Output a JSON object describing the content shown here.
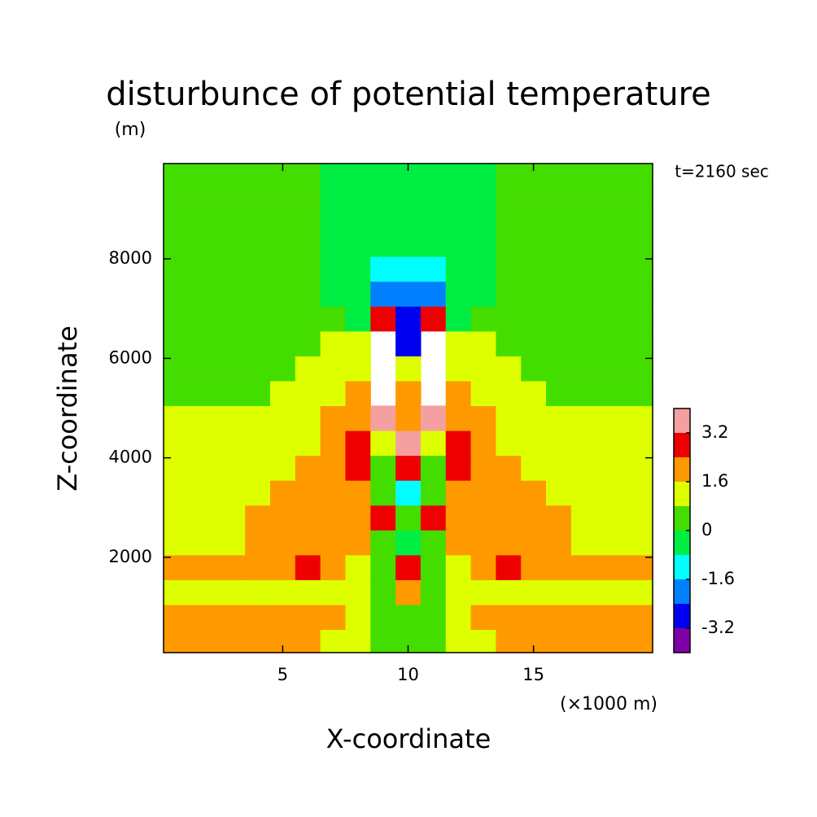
{
  "chart_data": {
    "type": "contour",
    "title": "disturbunce of potential temperature",
    "y_unit": "(m)",
    "x_unit": "(×1000 m)",
    "xlabel": "X-coordinate",
    "ylabel": "Z-coordinate",
    "annotation": "t=2160 sec",
    "xlim": [
      0.25,
      19.75
    ],
    "ylim": [
      83.3,
      9916.7
    ],
    "xticks": [
      5,
      10,
      15
    ],
    "yticks": [
      2000,
      4000,
      6000,
      8000
    ],
    "x": [
      1,
      2,
      3,
      4,
      5,
      6,
      7,
      8,
      9,
      10,
      11,
      12,
      13,
      14,
      15,
      16,
      17,
      18,
      19
    ],
    "y": [
      300,
      800,
      1300,
      1800,
      2300,
      2800,
      3300,
      3800,
      4300,
      4800,
      5300,
      5800,
      6300,
      6800,
      7300,
      7800,
      8300,
      8800,
      9300,
      9800
    ],
    "z": [
      [
        2,
        2,
        2,
        2,
        2,
        2,
        1.2,
        1.2,
        0.4,
        0.4,
        0.4,
        1.2,
        1.2,
        2,
        2,
        2,
        2,
        2,
        2
      ],
      [
        2,
        2,
        2,
        2,
        2,
        2,
        2,
        1.2,
        0.4,
        0.4,
        0.4,
        1.2,
        2,
        2,
        2,
        2,
        2,
        2,
        2
      ],
      [
        1.2,
        1.2,
        1.2,
        1.2,
        1.2,
        1.2,
        1.2,
        1.2,
        0.4,
        2,
        0.4,
        1.2,
        1.2,
        1.2,
        1.2,
        1.2,
        1.2,
        1.2,
        1.2
      ],
      [
        2,
        2,
        2,
        2,
        2,
        2.8,
        2,
        1.2,
        0.4,
        2.8,
        0.4,
        1.2,
        2,
        2.8,
        2,
        2,
        2,
        2,
        2
      ],
      [
        1.2,
        1.2,
        1.2,
        2,
        2,
        2,
        2,
        2,
        0.4,
        -0.4,
        0.4,
        2,
        2,
        2,
        2,
        2,
        1.2,
        1.2,
        1.2
      ],
      [
        1.2,
        1.2,
        1.2,
        2,
        2,
        2,
        2,
        2,
        2.8,
        0.4,
        2.8,
        2,
        2,
        2,
        2,
        2,
        1.2,
        1.2,
        1.2
      ],
      [
        1.2,
        1.2,
        1.2,
        1.2,
        2,
        2,
        2,
        2,
        0.4,
        -1.2,
        0.4,
        2,
        2,
        2,
        2,
        1.2,
        1.2,
        1.2,
        1.2
      ],
      [
        1.2,
        1.2,
        1.2,
        1.2,
        1.2,
        2,
        2,
        2.8,
        0.4,
        2.8,
        0.4,
        2.8,
        2,
        2,
        1.2,
        1.2,
        1.2,
        1.2,
        1.2
      ],
      [
        1.2,
        1.2,
        1.2,
        1.2,
        1.2,
        1.2,
        2,
        2.8,
        1.2,
        3.6,
        1.2,
        2.8,
        2,
        1.2,
        1.2,
        1.2,
        1.2,
        1.2,
        1.2
      ],
      [
        1.2,
        1.2,
        1.2,
        1.2,
        1.2,
        1.2,
        2,
        2,
        3.6,
        2,
        3.6,
        2,
        2,
        1.2,
        1.2,
        1.2,
        1.2,
        1.2,
        1.2
      ],
      [
        0.4,
        0.4,
        0.4,
        0.4,
        1.2,
        1.2,
        1.2,
        2,
        4.5,
        2,
        4.5,
        2,
        1.2,
        1.2,
        1.2,
        0.4,
        0.4,
        0.4,
        0.4
      ],
      [
        0.4,
        0.4,
        0.4,
        0.4,
        0.4,
        1.2,
        1.2,
        1.2,
        4.5,
        1.2,
        4.5,
        1.2,
        1.2,
        1.2,
        0.4,
        0.4,
        0.4,
        0.4,
        0.4
      ],
      [
        0.4,
        0.4,
        0.4,
        0.4,
        0.4,
        0.4,
        1.2,
        1.2,
        4.5,
        -2.8,
        4.5,
        1.2,
        1.2,
        0.4,
        0.4,
        0.4,
        0.4,
        0.4,
        0.4
      ],
      [
        0.4,
        0.4,
        0.4,
        0.4,
        0.4,
        0.4,
        0.4,
        -0.4,
        2.8,
        -2.8,
        2.8,
        -0.4,
        0.4,
        0.4,
        0.4,
        0.4,
        0.4,
        0.4,
        0.4
      ],
      [
        0.4,
        0.4,
        0.4,
        0.4,
        0.4,
        0.4,
        -0.4,
        -0.4,
        -2,
        -2,
        -2,
        -0.4,
        -0.4,
        0.4,
        0.4,
        0.4,
        0.4,
        0.4,
        0.4
      ],
      [
        0.4,
        0.4,
        0.4,
        0.4,
        0.4,
        0.4,
        -0.4,
        -0.4,
        -1.2,
        -1.2,
        -1.2,
        -0.4,
        -0.4,
        0.4,
        0.4,
        0.4,
        0.4,
        0.4,
        0.4
      ],
      [
        0.4,
        0.4,
        0.4,
        0.4,
        0.4,
        0.4,
        -0.4,
        -0.4,
        -0.4,
        -0.4,
        -0.4,
        -0.4,
        -0.4,
        0.4,
        0.4,
        0.4,
        0.4,
        0.4,
        0.4
      ],
      [
        0.4,
        0.4,
        0.4,
        0.4,
        0.4,
        0.4,
        -0.4,
        -0.4,
        -0.4,
        -0.4,
        -0.4,
        -0.4,
        -0.4,
        0.4,
        0.4,
        0.4,
        0.4,
        0.4,
        0.4
      ],
      [
        0.4,
        0.4,
        0.4,
        0.4,
        0.4,
        0.4,
        -0.4,
        -0.4,
        -0.4,
        -0.4,
        -0.4,
        -0.4,
        -0.4,
        0.4,
        0.4,
        0.4,
        0.4,
        0.4,
        0.4
      ],
      [
        0.4,
        0.4,
        0.4,
        0.4,
        0.4,
        0.4,
        -0.4,
        -0.4,
        -0.4,
        -0.4,
        -0.4,
        -0.4,
        -0.4,
        0.4,
        0.4,
        0.4,
        0.4,
        0.4,
        0.4
      ]
    ],
    "levels": [
      -4,
      -3.2,
      -2.4,
      -1.6,
      -0.8,
      0,
      0.8,
      1.6,
      2.4,
      3.2,
      4
    ],
    "colors": [
      "#8000a8",
      "#0000f0",
      "#0080ff",
      "#00ffff",
      "#00ee44",
      "#44dd00",
      "#ddff00",
      "#ff9900",
      "#ee0000",
      "#f4a0a0"
    ],
    "colorbar_ticks": [
      -3.2,
      -1.6,
      0,
      1.6,
      3.2
    ]
  }
}
